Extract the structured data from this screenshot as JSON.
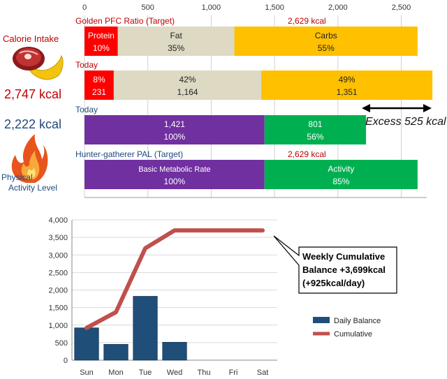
{
  "left_panel": {
    "calorie_intake_label": "Calorie Intake",
    "intake_value": "2,747 kcal",
    "burned_value": "2,222 kcal",
    "pal_label_line1": "Physical",
    "pal_label_line2": "Activity Level",
    "food_icon": "meat-banana-icon",
    "fire_icon": "flame-icon"
  },
  "colors": {
    "protein": "#ff0000",
    "fat": "#ddd9c3",
    "carbs": "#ffc000",
    "bmr": "#7030a0",
    "activity": "#00b050",
    "daily_balance": "#1f4e79",
    "cumulative": "#c0504d"
  },
  "chart_data": [
    {
      "type": "bar",
      "orientation": "horizontal-stacked",
      "x_ticks": [
        "0",
        "500",
        "1,000",
        "1,500",
        "2,000",
        "2,500"
      ],
      "xlim": [
        0,
        2700
      ],
      "annotation": "Excess 525 kcal",
      "rows": [
        {
          "label": "Golden PFC Ratio (Target)",
          "total_label": "2,629 kcal",
          "segments": [
            {
              "name": "Protein",
              "value": 263,
              "pct_label": "10%",
              "value_label": "",
              "color": "#ff0000"
            },
            {
              "name": "Fat",
              "value": 920,
              "pct_label": "35%",
              "value_label": "",
              "color": "#ddd9c3"
            },
            {
              "name": "Carbs",
              "value": 1446,
              "pct_label": "55%",
              "value_label": "",
              "color": "#ffc000"
            }
          ]
        },
        {
          "label": "Today",
          "total_label": "",
          "segments": [
            {
              "name": "",
              "value": 231,
              "pct_label": "8%",
              "value_label": "231",
              "color": "#ff0000"
            },
            {
              "name": "",
              "value": 1164,
              "pct_label": "42%",
              "value_label": "1,164",
              "color": "#ddd9c3"
            },
            {
              "name": "",
              "value": 1351,
              "pct_label": "49%",
              "value_label": "1,351",
              "color": "#ffc000"
            }
          ]
        },
        {
          "label": "Today",
          "total_label": "",
          "segments": [
            {
              "name": "",
              "value": 1421,
              "pct_label": "100%",
              "value_label": "1,421",
              "color": "#7030a0"
            },
            {
              "name": "",
              "value": 801,
              "pct_label": "56%",
              "value_label": "801",
              "color": "#00b050"
            }
          ]
        },
        {
          "label": "Hunter-gatherer  PAL (Target)",
          "total_label": "2,629 kcal",
          "segments": [
            {
              "name": "Basic Metabolic Rate",
              "value": 1421,
              "pct_label": "100%",
              "value_label": "",
              "color": "#7030a0"
            },
            {
              "name": "Activity",
              "value": 1208,
              "pct_label": "85%",
              "value_label": "",
              "color": "#00b050"
            }
          ]
        }
      ]
    },
    {
      "type": "bar",
      "categories": [
        "Sun",
        "Mon",
        "Tue",
        "Wed",
        "Thu",
        "Fri",
        "Sat"
      ],
      "ylim": [
        0,
        4000
      ],
      "y_ticks": [
        "0",
        "500",
        "1,000",
        "1,500",
        "2,000",
        "2,500",
        "3,000",
        "3,500",
        "4,000"
      ],
      "series": [
        {
          "name": "Daily Balance",
          "type": "bar",
          "values": [
            920,
            450,
            1820,
            510,
            null,
            null,
            null
          ]
        },
        {
          "name": "Cumulative",
          "type": "line",
          "values": [
            920,
            1370,
            3190,
            3700,
            3700,
            3700,
            3700
          ]
        }
      ],
      "annotation_lines": [
        "Weekly Cumulative",
        "Balance +3,699kcal",
        "(+925kcal/day)"
      ],
      "grid": true,
      "legend": "right"
    }
  ]
}
